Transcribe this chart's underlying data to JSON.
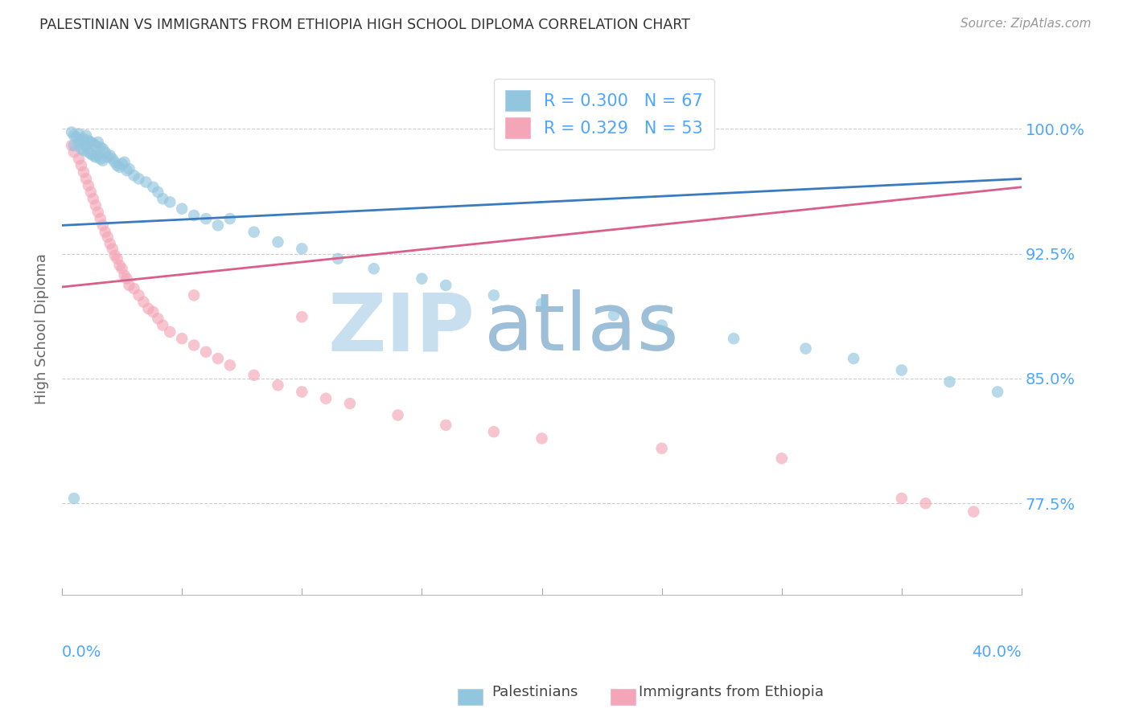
{
  "title": "PALESTINIAN VS IMMIGRANTS FROM ETHIOPIA HIGH SCHOOL DIPLOMA CORRELATION CHART",
  "source": "Source: ZipAtlas.com",
  "ylabel": "High School Diploma",
  "ytick_labels": [
    "77.5%",
    "85.0%",
    "92.5%",
    "100.0%"
  ],
  "ytick_values": [
    0.775,
    0.85,
    0.925,
    1.0
  ],
  "xlim": [
    0.0,
    0.4
  ],
  "ylim": [
    0.72,
    1.04
  ],
  "watermark_zip": "ZIP",
  "watermark_atlas": "atlas",
  "legend_blue_r": "R = 0.300",
  "legend_blue_n": "N = 67",
  "legend_pink_r": "R = 0.329",
  "legend_pink_n": "N = 53",
  "blue_color": "#92c5de",
  "pink_color": "#f4a6b8",
  "blue_line_color": "#3a7bbf",
  "pink_line_color": "#d95f8a",
  "text_color": "#4da6ff",
  "title_color": "#333333",
  "source_color": "#999999",
  "grid_color": "#cccccc",
  "watermark_color_zip": "#c8dff0",
  "watermark_color_atlas": "#9dbfd8",
  "bottom_legend_blue_label": "Palestinians",
  "bottom_legend_pink_label": "Immigrants from Ethiopia",
  "blue_line_x": [
    0.0,
    0.4
  ],
  "blue_line_y": [
    0.942,
    0.97
  ],
  "pink_line_x": [
    0.0,
    0.4
  ],
  "pink_line_y": [
    0.905,
    0.965
  ],
  "blue_x": [
    0.004,
    0.005,
    0.005,
    0.006,
    0.007,
    0.007,
    0.008,
    0.008,
    0.009,
    0.009,
    0.01,
    0.01,
    0.011,
    0.011,
    0.012,
    0.012,
    0.013,
    0.013,
    0.014,
    0.014,
    0.015,
    0.015,
    0.016,
    0.016,
    0.017,
    0.017,
    0.018,
    0.019,
    0.02,
    0.021,
    0.022,
    0.023,
    0.024,
    0.025,
    0.026,
    0.027,
    0.028,
    0.03,
    0.032,
    0.035,
    0.038,
    0.04,
    0.042,
    0.045,
    0.05,
    0.055,
    0.06,
    0.065,
    0.07,
    0.08,
    0.09,
    0.1,
    0.115,
    0.13,
    0.15,
    0.16,
    0.18,
    0.2,
    0.23,
    0.25,
    0.28,
    0.31,
    0.33,
    0.35,
    0.37,
    0.39,
    0.005
  ],
  "blue_y": [
    0.998,
    0.996,
    0.99,
    0.995,
    0.997,
    0.992,
    0.993,
    0.988,
    0.994,
    0.987,
    0.996,
    0.99,
    0.993,
    0.986,
    0.992,
    0.985,
    0.991,
    0.984,
    0.99,
    0.983,
    0.992,
    0.984,
    0.989,
    0.982,
    0.988,
    0.981,
    0.986,
    0.983,
    0.984,
    0.982,
    0.98,
    0.978,
    0.977,
    0.979,
    0.98,
    0.975,
    0.976,
    0.972,
    0.97,
    0.968,
    0.965,
    0.962,
    0.958,
    0.956,
    0.952,
    0.948,
    0.946,
    0.942,
    0.946,
    0.938,
    0.932,
    0.928,
    0.922,
    0.916,
    0.91,
    0.906,
    0.9,
    0.895,
    0.888,
    0.882,
    0.874,
    0.868,
    0.862,
    0.855,
    0.848,
    0.842,
    0.778
  ],
  "pink_x": [
    0.004,
    0.005,
    0.007,
    0.008,
    0.009,
    0.01,
    0.011,
    0.012,
    0.013,
    0.014,
    0.015,
    0.016,
    0.017,
    0.018,
    0.019,
    0.02,
    0.021,
    0.022,
    0.023,
    0.024,
    0.025,
    0.026,
    0.027,
    0.028,
    0.03,
    0.032,
    0.034,
    0.036,
    0.038,
    0.04,
    0.042,
    0.045,
    0.05,
    0.055,
    0.06,
    0.065,
    0.07,
    0.08,
    0.09,
    0.1,
    0.11,
    0.12,
    0.14,
    0.16,
    0.18,
    0.2,
    0.25,
    0.3,
    0.35,
    0.36,
    0.38,
    0.055,
    0.1
  ],
  "pink_y": [
    0.99,
    0.986,
    0.982,
    0.978,
    0.974,
    0.97,
    0.966,
    0.962,
    0.958,
    0.954,
    0.95,
    0.946,
    0.942,
    0.938,
    0.935,
    0.931,
    0.928,
    0.924,
    0.922,
    0.918,
    0.916,
    0.912,
    0.91,
    0.906,
    0.904,
    0.9,
    0.896,
    0.892,
    0.89,
    0.886,
    0.882,
    0.878,
    0.874,
    0.87,
    0.866,
    0.862,
    0.858,
    0.852,
    0.846,
    0.842,
    0.838,
    0.835,
    0.828,
    0.822,
    0.818,
    0.814,
    0.808,
    0.802,
    0.778,
    0.775,
    0.77,
    0.9,
    0.887
  ]
}
